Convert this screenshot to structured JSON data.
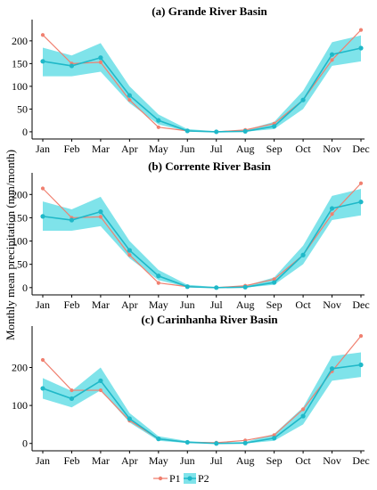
{
  "y_axis_label": "Monthly mean precipitation (mm/month)",
  "legend": {
    "p1": "P1",
    "p2": "P2"
  },
  "colors": {
    "p1": "#f08070",
    "p2": "#1fb8c8",
    "band": "#7fe3ea",
    "axis": "#000000"
  },
  "chart_data": [
    {
      "type": "line",
      "title": "(a) Grande River Basin",
      "categories": [
        "Jan",
        "Feb",
        "Mar",
        "Apr",
        "May",
        "Jun",
        "Jul",
        "Aug",
        "Sep",
        "Oct",
        "Nov",
        "Dec"
      ],
      "y_ticks": [
        0,
        50,
        100,
        150,
        200
      ],
      "ylim": [
        -8,
        235
      ],
      "series": [
        {
          "name": "P1",
          "values": [
            213,
            150,
            153,
            70,
            10,
            2,
            0,
            4,
            18,
            70,
            158,
            224
          ]
        },
        {
          "name": "P2",
          "values": [
            155,
            145,
            163,
            80,
            25,
            2,
            0,
            1,
            12,
            70,
            170,
            184
          ]
        }
      ],
      "band": {
        "lower": [
          122,
          122,
          132,
          63,
          16,
          1,
          0,
          0,
          6,
          50,
          145,
          155
        ],
        "upper": [
          185,
          168,
          195,
          100,
          38,
          6,
          1,
          4,
          22,
          90,
          197,
          212
        ]
      }
    },
    {
      "type": "line",
      "title": "(b) Corrente River Basin",
      "categories": [
        "Jan",
        "Feb",
        "Mar",
        "Apr",
        "May",
        "Jun",
        "Jul",
        "Aug",
        "Sep",
        "Oct",
        "Nov",
        "Dec"
      ],
      "y_ticks": [
        0,
        50,
        100,
        150,
        200
      ],
      "ylim": [
        -8,
        235
      ],
      "series": [
        {
          "name": "P1",
          "values": [
            213,
            150,
            152,
            70,
            10,
            2,
            0,
            4,
            18,
            70,
            158,
            224
          ]
        },
        {
          "name": "P2",
          "values": [
            153,
            145,
            163,
            80,
            25,
            2,
            0,
            1,
            11,
            70,
            170,
            184
          ]
        }
      ],
      "band": {
        "lower": [
          122,
          122,
          132,
          63,
          16,
          1,
          0,
          0,
          6,
          50,
          145,
          155
        ],
        "upper": [
          185,
          168,
          195,
          100,
          38,
          6,
          1,
          4,
          22,
          90,
          197,
          212
        ]
      }
    },
    {
      "type": "line",
      "title": "(c) Carinhanha River Basin",
      "categories": [
        "Jan",
        "Feb",
        "Mar",
        "Apr",
        "May",
        "Jun",
        "Jul",
        "Aug",
        "Sep",
        "Oct",
        "Nov",
        "Dec"
      ],
      "y_ticks": [
        0,
        100,
        200
      ],
      "ylim": [
        -10,
        295
      ],
      "series": [
        {
          "name": "P1",
          "values": [
            220,
            140,
            140,
            60,
            12,
            3,
            2,
            8,
            22,
            90,
            190,
            283
          ]
        },
        {
          "name": "P2",
          "values": [
            145,
            118,
            165,
            65,
            12,
            3,
            0,
            1,
            14,
            72,
            197,
            207
          ]
        }
      ],
      "band": {
        "lower": [
          118,
          95,
          140,
          55,
          7,
          1,
          0,
          0,
          7,
          50,
          165,
          175
        ],
        "upper": [
          172,
          138,
          200,
          80,
          19,
          6,
          2,
          4,
          25,
          95,
          230,
          240
        ]
      }
    }
  ]
}
